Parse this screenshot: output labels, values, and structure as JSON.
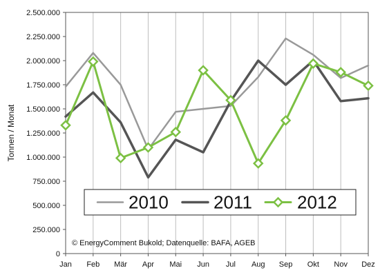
{
  "chart_data": {
    "type": "line",
    "categories": [
      "Jan",
      "Feb",
      "Mär",
      "Apr",
      "Mai",
      "Jun",
      "Jul",
      "Aug",
      "Sep",
      "Okt",
      "Nov",
      "Dez"
    ],
    "series": [
      {
        "name": "2010",
        "color": "#999999",
        "marker": "none",
        "values": [
          1730000,
          2080000,
          1750000,
          1080000,
          1470000,
          1500000,
          1530000,
          1830000,
          2230000,
          2060000,
          1820000,
          1950000
        ]
      },
      {
        "name": "2011",
        "color": "#555555",
        "marker": "none",
        "values": [
          1420000,
          1670000,
          1360000,
          790000,
          1180000,
          1050000,
          1580000,
          2000000,
          1750000,
          2000000,
          1580000,
          1610000
        ]
      },
      {
        "name": "2012",
        "color": "#7cc043",
        "marker": "open-diamond",
        "values": [
          1330000,
          1990000,
          990000,
          1100000,
          1260000,
          1900000,
          1590000,
          935000,
          1380000,
          1970000,
          1880000,
          1740000
        ]
      }
    ],
    "ylabel": "Tonnen / Monat",
    "xlabel": "",
    "ylim": [
      0,
      2500000
    ],
    "yticks": [
      0,
      250000,
      500000,
      750000,
      1000000,
      1250000,
      1500000,
      1750000,
      2000000,
      2250000,
      2500000
    ],
    "ytick_labels": [
      "0",
      "250.000",
      "500.000",
      "750.000",
      "1.000.000",
      "1.250.000",
      "1.500.000",
      "1.750.000",
      "2.000.000",
      "2.250.000",
      "2.500.000"
    ],
    "grid": "vertical",
    "legend_position": "bottom-center",
    "credit": "© EnergyComment Bukold; Datenquelle: BAFA, AGEB"
  }
}
